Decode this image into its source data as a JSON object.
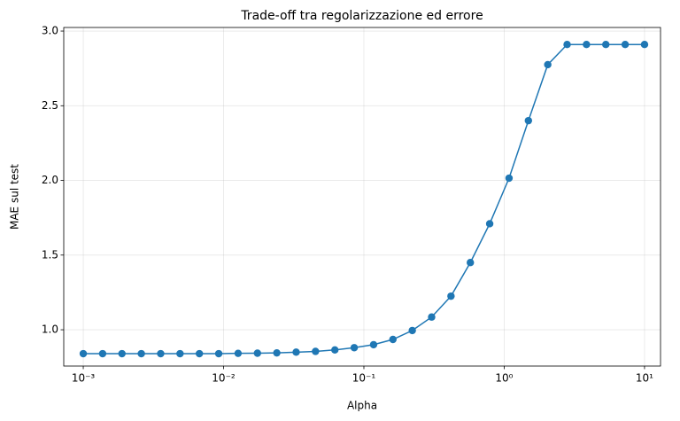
{
  "chart_data": {
    "type": "line",
    "title": "Trade-off tra regolarizzazione ed errore",
    "xlabel": "Alpha",
    "ylabel": "MAE sul test",
    "xscale": "log",
    "x": [
      0.001,
      0.0013738,
      0.0018874,
      0.0025929,
      0.0035622,
      0.0048939,
      0.0067234,
      0.0092367,
      0.01269,
      0.017433,
      0.02395,
      0.032903,
      0.045204,
      0.062102,
      0.085317,
      0.11721,
      0.16103,
      0.22122,
      0.30392,
      0.41753,
      0.57362,
      0.78805,
      1.0826,
      1.4874,
      2.0434,
      2.8072,
      3.8566,
      5.2983,
      7.279,
      10
    ],
    "values": [
      0.84,
      0.84,
      0.84,
      0.84,
      0.84,
      0.84,
      0.84,
      0.84,
      0.842,
      0.843,
      0.845,
      0.85,
      0.855,
      0.865,
      0.88,
      0.9,
      0.935,
      0.995,
      1.085,
      1.225,
      1.45,
      1.71,
      2.015,
      2.4,
      2.775,
      2.91,
      2.91,
      2.91,
      2.91,
      2.91
    ],
    "color": "#1f77b4",
    "xlim": [
      0.000726,
      13.0
    ],
    "ylim": [
      0.757,
      3.024
    ],
    "xticks": [
      {
        "value": 0.001,
        "label": "10⁻³"
      },
      {
        "value": 0.01,
        "label": "10⁻²"
      },
      {
        "value": 0.1,
        "label": "10⁻¹"
      },
      {
        "value": 1,
        "label": "10⁰"
      },
      {
        "value": 10,
        "label": "10¹"
      }
    ],
    "yticks": [
      {
        "value": 1,
        "label": "1.0"
      },
      1.5,
      {
        "value": 2,
        "label": "2.0"
      },
      2.5,
      {
        "value": 3,
        "label": "3.0"
      }
    ],
    "grid": true
  }
}
